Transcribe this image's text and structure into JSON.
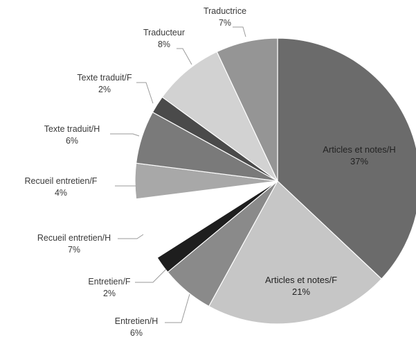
{
  "chart_data": {
    "type": "pie",
    "slices": [
      {
        "label": "Articles et notes/H",
        "value": 37,
        "percent_label": "37%",
        "color": "#6b6b6b"
      },
      {
        "label": "Articles et notes/F",
        "value": 21,
        "percent_label": "21%",
        "color": "#c6c6c6"
      },
      {
        "label": "Entretien/H",
        "value": 6,
        "percent_label": "6%",
        "color": "#8a8a8a"
      },
      {
        "label": "Entretien/F",
        "value": 2,
        "percent_label": "2%",
        "color": "#1e1e1e"
      },
      {
        "label": "Recueil entretien/H",
        "value": 7,
        "percent_label": "7%",
        "color": "#ffffff"
      },
      {
        "label": "Recueil entretien/F",
        "value": 4,
        "percent_label": "4%",
        "color": "#a8a8a8"
      },
      {
        "label": "Texte traduit/H",
        "value": 6,
        "percent_label": "6%",
        "color": "#7a7a7a"
      },
      {
        "label": "Texte traduit/F",
        "value": 2,
        "percent_label": "2%",
        "color": "#4a4a4a"
      },
      {
        "label": "Traducteur",
        "value": 8,
        "percent_label": "8%",
        "color": "#d2d2d2"
      },
      {
        "label": "Traductrice",
        "value": 7,
        "percent_label": "7%",
        "color": "#959595"
      }
    ],
    "start": "12 o'clock",
    "direction": "clockwise",
    "legend": "none",
    "data_labels": "category name and percentage"
  }
}
